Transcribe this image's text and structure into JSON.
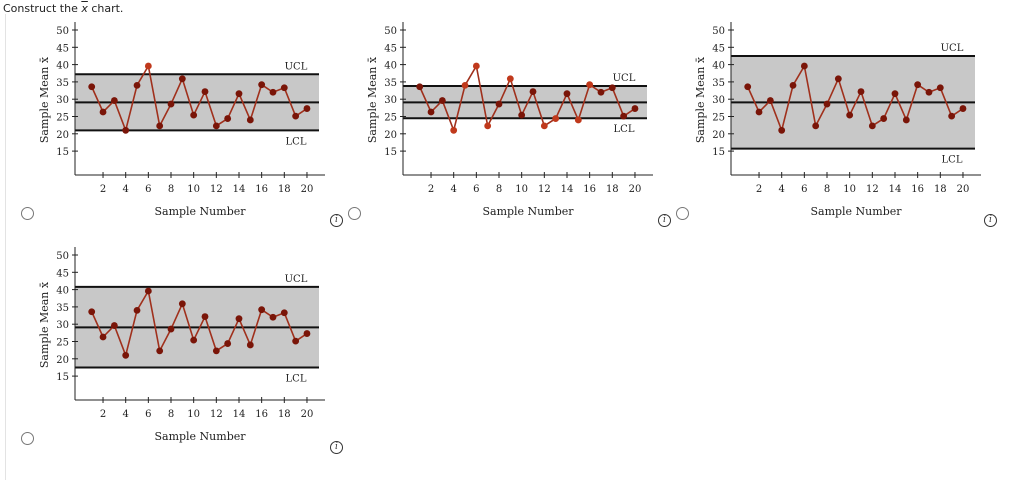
{
  "prompt": {
    "before": "Construct the ",
    "symbol": "x",
    "after": " chart."
  },
  "info_glyph": "i",
  "chart_data": [
    {
      "type": "line",
      "xlabel": "Sample Number",
      "ylabel": "Sample Mean x̄",
      "ylim": [
        15,
        50
      ],
      "yticks": [
        15,
        20,
        25,
        30,
        35,
        40,
        45,
        50
      ],
      "xticks": [
        2,
        4,
        6,
        8,
        10,
        12,
        14,
        16,
        18,
        20
      ],
      "x": [
        1,
        2,
        3,
        4,
        5,
        6,
        7,
        8,
        9,
        10,
        11,
        12,
        13,
        14,
        15,
        16,
        17,
        18,
        19,
        20
      ],
      "values": [
        33.6,
        26.3,
        29.6,
        21.0,
        34.0,
        39.6,
        22.3,
        28.6,
        35.9,
        25.4,
        32.2,
        22.3,
        24.4,
        31.6,
        24.0,
        34.2,
        32.0,
        33.3,
        25.1,
        27.3
      ],
      "center": 29.1,
      "ucl": 37.2,
      "lcl": 21.0,
      "ucl_label": "UCL",
      "lcl_label": "LCL"
    },
    {
      "type": "line",
      "xlabel": "Sample Number",
      "ylabel": "Sample Mean x̄",
      "ylim": [
        15,
        50
      ],
      "yticks": [
        15,
        20,
        25,
        30,
        35,
        40,
        45,
        50
      ],
      "xticks": [
        2,
        4,
        6,
        8,
        10,
        12,
        14,
        16,
        18,
        20
      ],
      "x": [
        1,
        2,
        3,
        4,
        5,
        6,
        7,
        8,
        9,
        10,
        11,
        12,
        13,
        14,
        15,
        16,
        17,
        18,
        19,
        20
      ],
      "values": [
        33.6,
        26.3,
        29.6,
        21.0,
        34.0,
        39.6,
        22.3,
        28.6,
        35.9,
        25.4,
        32.2,
        22.3,
        24.4,
        31.6,
        24.0,
        34.2,
        32.0,
        33.3,
        25.1,
        27.3
      ],
      "center": 29.1,
      "ucl": 33.8,
      "lcl": 24.5,
      "ucl_label": "UCL",
      "lcl_label": "LCL"
    },
    {
      "type": "line",
      "xlabel": "Sample Number",
      "ylabel": "Sample Mean x̄",
      "ylim": [
        15,
        50
      ],
      "yticks": [
        15,
        20,
        25,
        30,
        35,
        40,
        45,
        50
      ],
      "xticks": [
        2,
        4,
        6,
        8,
        10,
        12,
        14,
        16,
        18,
        20
      ],
      "x": [
        1,
        2,
        3,
        4,
        5,
        6,
        7,
        8,
        9,
        10,
        11,
        12,
        13,
        14,
        15,
        16,
        17,
        18,
        19,
        20
      ],
      "values": [
        33.6,
        26.3,
        29.6,
        21.0,
        34.0,
        39.6,
        22.3,
        28.6,
        35.9,
        25.4,
        32.2,
        22.3,
        24.4,
        31.6,
        24.0,
        34.2,
        32.0,
        33.3,
        25.1,
        27.3
      ],
      "center": 29.1,
      "ucl": 42.5,
      "lcl": 15.7,
      "ucl_label": "UCL",
      "lcl_label": "LCL"
    },
    {
      "type": "line",
      "xlabel": "Sample Number",
      "ylabel": "Sample Mean x̄",
      "ylim": [
        15,
        50
      ],
      "yticks": [
        15,
        20,
        25,
        30,
        35,
        40,
        45,
        50
      ],
      "xticks": [
        2,
        4,
        6,
        8,
        10,
        12,
        14,
        16,
        18,
        20
      ],
      "x": [
        1,
        2,
        3,
        4,
        5,
        6,
        7,
        8,
        9,
        10,
        11,
        12,
        13,
        14,
        15,
        16,
        17,
        18,
        19,
        20
      ],
      "values": [
        33.6,
        26.3,
        29.6,
        21.0,
        34.0,
        39.6,
        22.3,
        28.6,
        35.9,
        25.4,
        32.2,
        22.3,
        24.4,
        31.6,
        24.0,
        34.2,
        32.0,
        33.3,
        25.1,
        27.3
      ],
      "center": 29.1,
      "ucl": 40.8,
      "lcl": 17.5,
      "ucl_label": "UCL",
      "lcl_label": "LCL"
    }
  ],
  "colors": {
    "band": "#c8c8c8",
    "line": "#a0301c",
    "point": "#7a1508",
    "point_out": "#c0391c",
    "limit": "#111111"
  }
}
